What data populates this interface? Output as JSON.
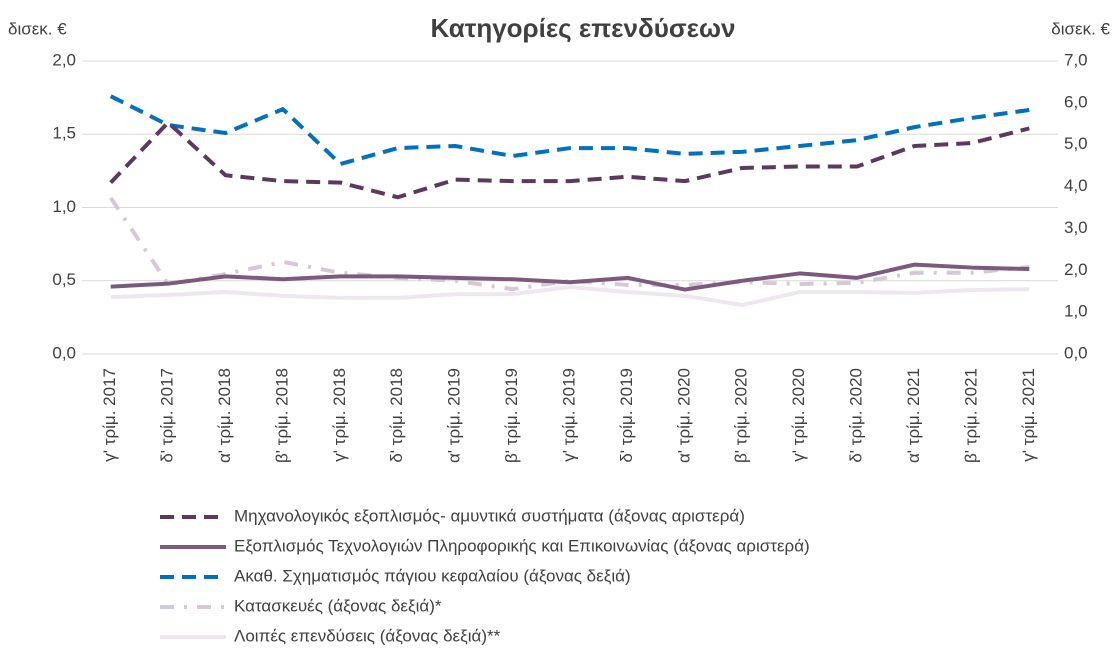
{
  "chart_data": {
    "type": "line",
    "title": "Κατηγορίες επενδύσεων",
    "y_label": "δισεκ. €",
    "y2_label": "δισεκ. €",
    "categories": [
      "γ' τρίμ. 2017",
      "δ' τρίμ. 2017",
      "α' τρίμ. 2018",
      "β' τρίμ. 2018",
      "γ' τρίμ. 2018",
      "δ' τρίμ. 2018",
      "α' τρίμ. 2019",
      "β' τρίμ. 2019",
      "γ' τρίμ. 2019",
      "δ' τρίμ. 2019",
      "α' τρίμ. 2020",
      "β' τρίμ. 2020",
      "γ' τρίμ. 2020",
      "δ' τρίμ. 2020",
      "α' τρίμ. 2021",
      "β' τρίμ. 2021",
      "γ' τρίμ. 2021"
    ],
    "ylim": [
      0,
      2
    ],
    "yticks": [
      {
        "value": 0,
        "label": "0,0"
      },
      {
        "value": 0.5,
        "label": "0,5"
      },
      {
        "value": 1,
        "label": "1,0"
      },
      {
        "value": 1.5,
        "label": "1,5"
      },
      {
        "value": 2,
        "label": "2,0"
      }
    ],
    "y2lim": [
      0,
      7
    ],
    "y2ticks": [
      {
        "value": 0,
        "label": "0,0"
      },
      {
        "value": 1,
        "label": "1,0"
      },
      {
        "value": 2,
        "label": "2,0"
      },
      {
        "value": 3,
        "label": "3,0"
      },
      {
        "value": 4,
        "label": "4,0"
      },
      {
        "value": 5,
        "label": "5,0"
      },
      {
        "value": 6,
        "label": "6,0"
      },
      {
        "value": 7,
        "label": "7,0"
      }
    ],
    "grid": true,
    "series": [
      {
        "name": "Μηχανολογικός εξοπλισμός- αμυντικά συστήματα (άξονας αριστερά)",
        "color": "#5b3a5e",
        "style": "dashed",
        "axis": "y",
        "values": [
          1.17,
          1.58,
          1.22,
          1.18,
          1.17,
          1.07,
          1.19,
          1.18,
          1.18,
          1.21,
          1.18,
          1.27,
          1.28,
          1.28,
          1.42,
          1.44,
          1.54
        ]
      },
      {
        "name": "Εξοπλισμός Τεχνολογιών Πληροφορικής και Επικοινωνίας (άξονας αριστερά)",
        "color": "#7b5a7e",
        "style": "solid",
        "axis": "y",
        "values": [
          0.46,
          0.48,
          0.53,
          0.51,
          0.53,
          0.53,
          0.52,
          0.51,
          0.49,
          0.52,
          0.44,
          0.5,
          0.55,
          0.52,
          0.61,
          0.59,
          0.58
        ]
      },
      {
        "name": "Ακαθ. Σχηματισμός πάγιου κεφαλαίου (άξονας δεξιά)",
        "color": "#0070c0",
        "style": "dashed",
        "axis": "y2",
        "values": [
          6.16,
          5.47,
          5.28,
          5.85,
          4.54,
          4.92,
          4.97,
          4.73,
          4.92,
          4.92,
          4.78,
          4.83,
          4.97,
          5.11,
          5.42,
          5.64,
          5.83
        ]
      },
      {
        "name": "Κατασκευές (άξονας δεξιά)*",
        "color": "#d6c8d6",
        "style": "dashdot",
        "axis": "y2",
        "values": [
          3.73,
          1.67,
          1.91,
          2.2,
          1.94,
          1.82,
          1.75,
          1.55,
          1.75,
          1.65,
          1.65,
          1.72,
          1.67,
          1.7,
          1.94,
          1.94,
          2.08
        ]
      },
      {
        "name": "Λοιπές επενδύσεις (άξονας δεξιά)**",
        "color": "#efe7ef",
        "style": "solid",
        "axis": "y2",
        "values": [
          1.36,
          1.41,
          1.48,
          1.39,
          1.34,
          1.34,
          1.43,
          1.43,
          1.6,
          1.48,
          1.39,
          1.17,
          1.48,
          1.48,
          1.46,
          1.53,
          1.55
        ]
      }
    ]
  }
}
